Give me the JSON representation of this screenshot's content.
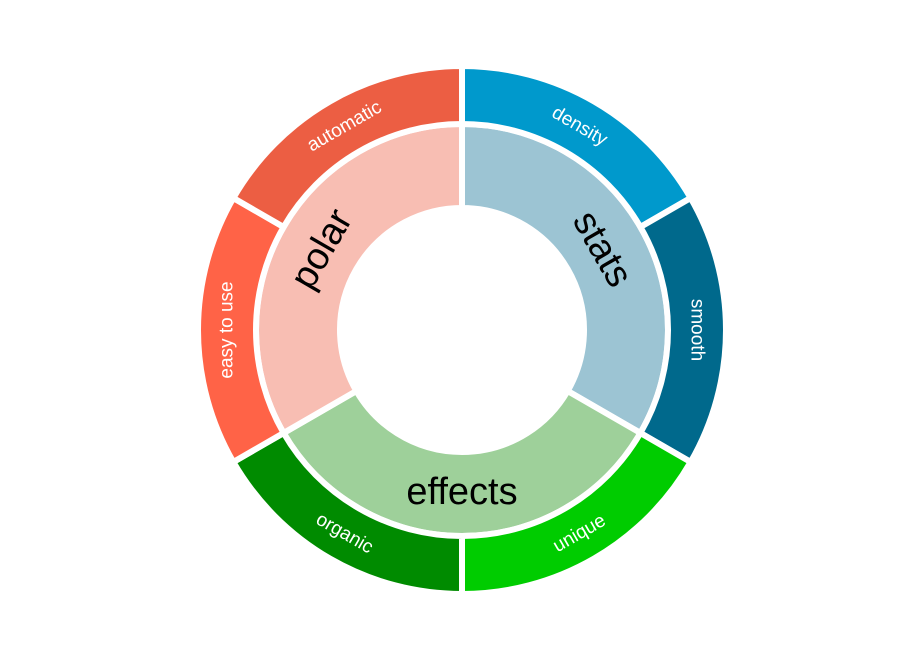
{
  "chart_data": {
    "type": "sunburst",
    "title": "",
    "inner": [
      {
        "label": "stats",
        "value": 2,
        "color": "#9cc4d3"
      },
      {
        "label": "effects",
        "value": 2,
        "color": "#9ed09a"
      },
      {
        "label": "polar",
        "value": 2,
        "color": "#f8beb3"
      }
    ],
    "outer": [
      {
        "label": "density",
        "parent": "stats",
        "value": 1,
        "color": "#0099cc"
      },
      {
        "label": "smooth",
        "parent": "stats",
        "value": 1,
        "color": "#00698c"
      },
      {
        "label": "unique",
        "parent": "effects",
        "value": 1,
        "color": "#00cc00"
      },
      {
        "label": "organic",
        "parent": "effects",
        "value": 1,
        "color": "#008b00"
      },
      {
        "label": "easy to use",
        "parent": "polar",
        "value": 1,
        "color": "#ff6347"
      },
      {
        "label": "automatic",
        "parent": "polar",
        "value": 1,
        "color": "#ec5e43"
      }
    ]
  }
}
